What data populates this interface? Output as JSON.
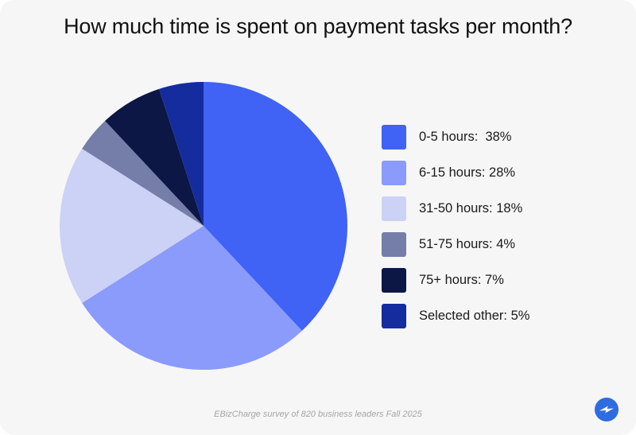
{
  "chart_data": {
    "type": "pie",
    "title": "How much time is spent on payment tasks per month?",
    "slices": [
      {
        "label": "0-5 hours:  38%",
        "value": 38,
        "color": "#4062f5"
      },
      {
        "label": "6-15 hours: 28%",
        "value": 28,
        "color": "#8a9bfb"
      },
      {
        "label": "31-50 hours: 18%",
        "value": 18,
        "color": "#ccd1f6"
      },
      {
        "label": "51-75 hours: 4%",
        "value": 4,
        "color": "#757ea8"
      },
      {
        "label": "75+ hours: 7%",
        "value": 7,
        "color": "#0c1746"
      },
      {
        "label": "Selected other: 5%",
        "value": 5,
        "color": "#142c9e"
      }
    ],
    "legend_position": "right"
  },
  "footnote": "EBizCharge survey of 820 business leaders Fall 2025",
  "logo": {
    "icon": "lightning-bolt-icon",
    "color": "#2f6ce0"
  }
}
